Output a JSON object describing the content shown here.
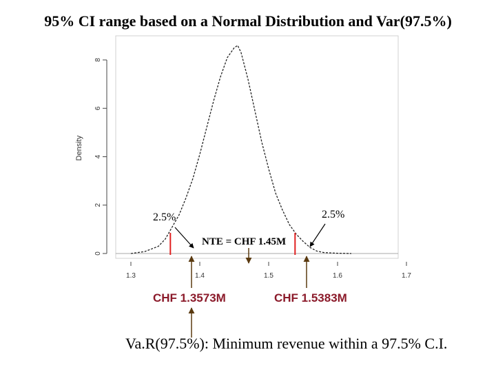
{
  "title": "95% CI range based on a Normal Distribution and Var(97.5%)",
  "caption": "Va.R(97.5%): Minimum revenue within a 97.5% C.I.",
  "chart_data": {
    "type": "line",
    "series": [
      {
        "x": [
          1.3,
          1.32,
          1.34,
          1.35,
          1.36,
          1.37,
          1.38,
          1.39,
          1.4,
          1.41,
          1.42,
          1.43,
          1.44,
          1.45,
          1.455,
          1.46,
          1.47,
          1.48,
          1.49,
          1.5,
          1.51,
          1.52,
          1.53,
          1.54,
          1.55,
          1.56,
          1.57,
          1.58,
          1.6,
          1.62
        ],
        "y": [
          0.0,
          0.08,
          0.3,
          0.6,
          1.1,
          1.6,
          2.3,
          3.1,
          4.1,
          5.2,
          6.3,
          7.3,
          8.1,
          8.5,
          8.6,
          8.3,
          7.2,
          5.9,
          4.6,
          3.5,
          2.5,
          1.8,
          1.2,
          0.8,
          0.5,
          0.25,
          0.1,
          0.04,
          0.01,
          0.0
        ]
      }
    ],
    "xticks": [
      "1.3",
      "1.4",
      "1.5",
      "1.6",
      "1.7"
    ],
    "yticks": [
      "0",
      "2",
      "4",
      "6",
      "8"
    ],
    "ylabel": "Density",
    "xlim": [
      1.27,
      1.71
    ],
    "ylim": [
      -0.1,
      9.4
    ],
    "annotations": {
      "left_tail": "2.5%",
      "right_tail": "2.5%",
      "nte": "NTE = CHF 1.45M",
      "lower_bound": "CHF 1.3573M",
      "upper_bound": "CHF 1.5383M"
    },
    "markers": {
      "lower_x": 1.3573,
      "upper_x": 1.5383,
      "nte_x": 1.45
    },
    "colors": {
      "bound_line": "#e02020",
      "arrow": "#5a3a10",
      "bound_text": "#8b1a2a"
    }
  }
}
